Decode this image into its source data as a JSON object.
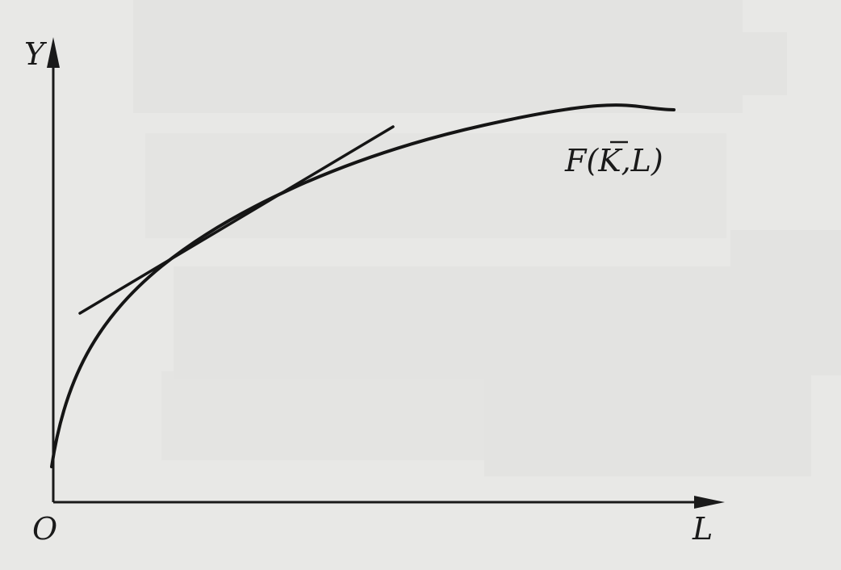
{
  "figure": {
    "axis_labels": {
      "y": "Y",
      "x": "L",
      "origin": "O"
    },
    "curve_label": {
      "prefix": "F(",
      "k": "K",
      "suffix": ",L)"
    }
  },
  "colors": {
    "background": "#e8e8e6",
    "ink": "#151515",
    "redaction": "#e3e3e1"
  }
}
